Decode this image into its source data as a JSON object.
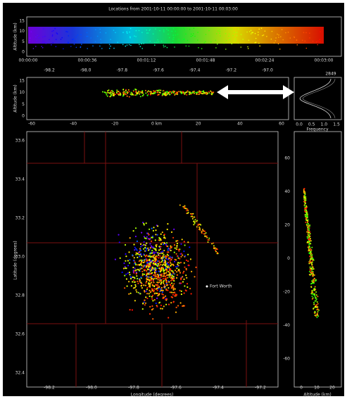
{
  "title": "Locations from 2001-10-11 00:00:00 to 2001-10-11 00:03:00",
  "time_panel": {
    "y_label": "Altitude (km)",
    "y_ticks": [
      "15",
      "10",
      "5",
      "0"
    ],
    "x_ticks": [
      "00:00:00",
      "00:00:36",
      "00:01:12",
      "00:01:48",
      "00:02:24",
      "00:03:00"
    ]
  },
  "lon_alt_panel": {
    "y_label": "Altitude (km)",
    "y_ticks": [
      "15",
      "10",
      "5",
      "0"
    ],
    "top_ticks": [
      "-98.2",
      "-98.0",
      "-97.8",
      "-97.6",
      "-97.4",
      "-97.2",
      "-97.0"
    ],
    "x_ticks": [
      "-60",
      "-40",
      "-20",
      "0 km",
      "20",
      "40",
      "60"
    ]
  },
  "histogram_panel": {
    "top_label": "2849",
    "x_label": "Frequency",
    "x_ticks": [
      "0.0",
      "0.5",
      "1.0",
      "1.5"
    ]
  },
  "plan_panel": {
    "x_label": "Longitude (degrees)",
    "y_label": "Latitude (degrees)",
    "x_ticks": [
      "-98.2",
      "-98.0",
      "-97.8",
      "-97.6",
      "-97.4",
      "-97.2"
    ],
    "y_ticks": [
      "33.6",
      "33.4",
      "33.2",
      "33.0",
      "32.8",
      "32.6",
      "32.4"
    ],
    "city": "Fort Worth"
  },
  "lat_alt_panel": {
    "x_label": "Altitude (km)",
    "x_ticks": [
      "0",
      "10",
      "20"
    ],
    "y_ticks": [
      "60",
      "40",
      "20",
      "0",
      "-20",
      "-40",
      "-60"
    ]
  }
}
